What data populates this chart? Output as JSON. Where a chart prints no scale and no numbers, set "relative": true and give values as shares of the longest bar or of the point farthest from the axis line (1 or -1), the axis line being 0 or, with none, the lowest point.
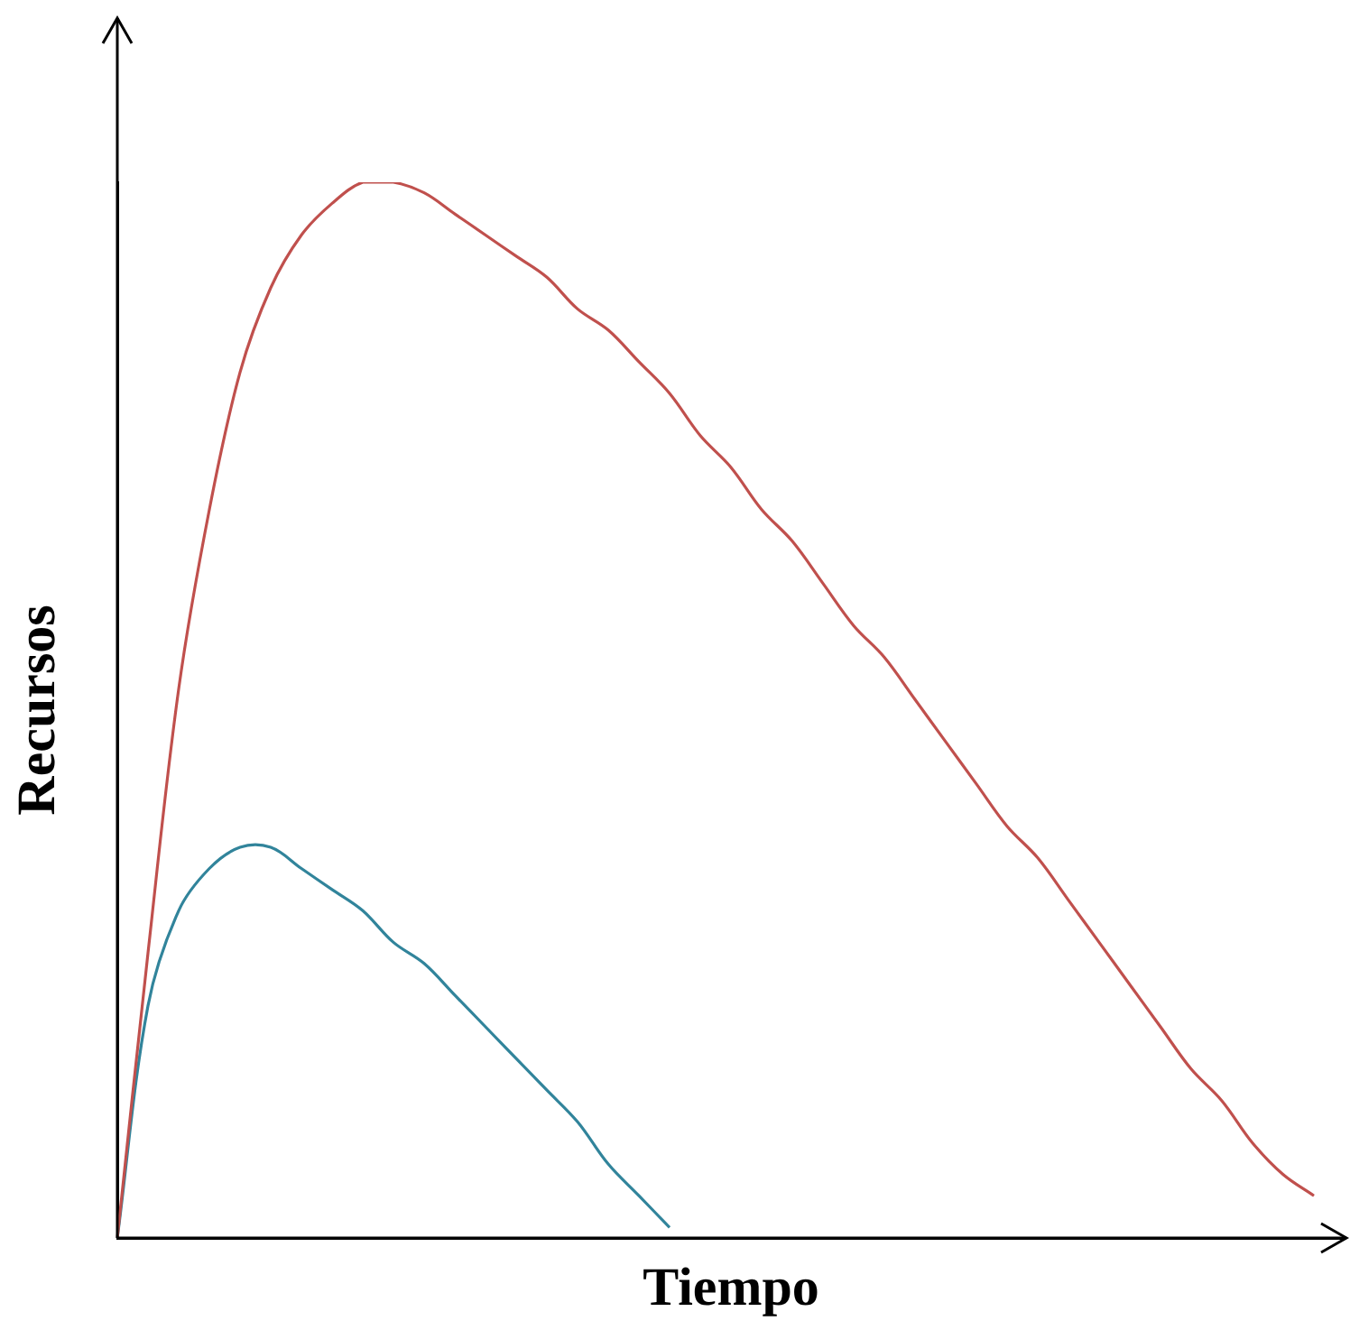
{
  "chart_data": {
    "type": "line",
    "xlabel": "Tiempo",
    "ylabel": "Recursos",
    "relative": true,
    "grid": false,
    "legend": false,
    "marker": "none",
    "line_style": "solid",
    "categories": [
      null,
      null,
      null,
      null,
      null,
      null,
      null,
      null,
      null,
      null,
      null,
      null,
      null,
      null,
      null,
      null,
      null,
      null,
      null,
      null,
      null,
      null,
      null,
      null,
      null,
      null,
      null,
      null,
      null,
      null,
      null,
      null,
      null,
      null,
      null,
      null,
      null,
      null,
      null,
      null,
      null
    ],
    "series": [
      {
        "color": "#c0504d",
        "values": [
          0,
          0.27,
          0.52,
          0.69,
          0.82,
          0.9,
          0.95,
          0.98,
          1,
          1,
          0.99,
          0.97,
          0.95,
          0.93,
          0.91,
          0.88,
          0.86,
          0.83,
          0.8,
          0.76,
          0.73,
          0.69,
          0.66,
          0.62,
          0.58,
          0.55,
          0.51,
          0.47,
          0.43,
          0.39,
          0.36,
          0.32,
          0.28,
          0.24,
          0.2,
          0.16,
          0.13,
          0.09,
          0.06,
          0.04,
          null
        ]
      },
      {
        "color": "#31849b",
        "values": [
          0,
          0.22,
          0.31,
          0.35,
          0.37,
          0.37,
          0.35,
          0.33,
          0.31,
          0.28,
          0.26,
          0.23,
          0.2,
          0.17,
          0.14,
          0.11,
          0.07,
          0.04,
          0.01,
          null,
          null,
          null,
          null,
          null,
          null,
          null,
          null,
          null,
          null,
          null,
          null,
          null,
          null,
          null,
          null,
          null,
          null,
          null,
          null,
          null,
          null
        ]
      }
    ]
  }
}
